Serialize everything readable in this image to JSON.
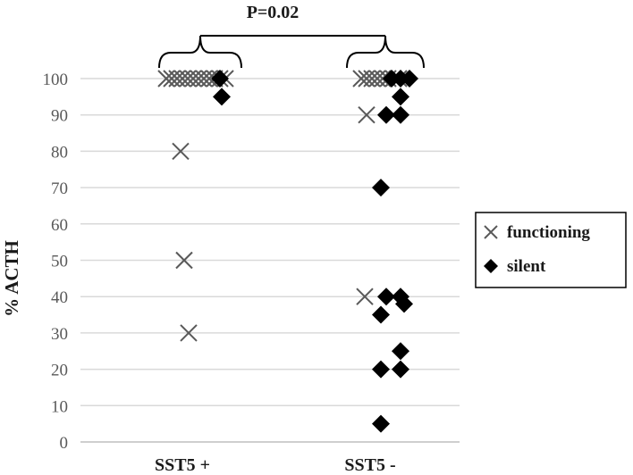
{
  "chart_data": {
    "type": "scatter",
    "title": "",
    "xlabel": "",
    "ylabel": "% ACTH",
    "categories": [
      "SST5 +",
      "SST5 -"
    ],
    "ylim": [
      0,
      100
    ],
    "yticks": [
      0,
      10,
      20,
      30,
      40,
      50,
      60,
      70,
      80,
      90,
      100
    ],
    "grid": true,
    "legend_position": "right",
    "annotation": "P=0.02",
    "series": [
      {
        "name": "functioning",
        "marker": "x",
        "color": "#595959",
        "points": [
          {
            "category": "SST5 +",
            "y": 100
          },
          {
            "category": "SST5 +",
            "y": 100
          },
          {
            "category": "SST5 +",
            "y": 100
          },
          {
            "category": "SST5 +",
            "y": 100
          },
          {
            "category": "SST5 +",
            "y": 100
          },
          {
            "category": "SST5 +",
            "y": 100
          },
          {
            "category": "SST5 +",
            "y": 100
          },
          {
            "category": "SST5 +",
            "y": 100
          },
          {
            "category": "SST5 +",
            "y": 100
          },
          {
            "category": "SST5 +",
            "y": 100
          },
          {
            "category": "SST5 +",
            "y": 100
          },
          {
            "category": "SST5 +",
            "y": 100
          },
          {
            "category": "SST5 +",
            "y": 80
          },
          {
            "category": "SST5 +",
            "y": 50
          },
          {
            "category": "SST5 +",
            "y": 30
          },
          {
            "category": "SST5 -",
            "y": 100
          },
          {
            "category": "SST5 -",
            "y": 100
          },
          {
            "category": "SST5 -",
            "y": 100
          },
          {
            "category": "SST5 -",
            "y": 100
          },
          {
            "category": "SST5 -",
            "y": 100
          },
          {
            "category": "SST5 -",
            "y": 100
          },
          {
            "category": "SST5 -",
            "y": 100
          },
          {
            "category": "SST5 -",
            "y": 100
          },
          {
            "category": "SST5 -",
            "y": 90
          },
          {
            "category": "SST5 -",
            "y": 40
          }
        ]
      },
      {
        "name": "silent",
        "marker": "diamond",
        "color": "#000000",
        "points": [
          {
            "category": "SST5 +",
            "y": 100
          },
          {
            "category": "SST5 +",
            "y": 95
          },
          {
            "category": "SST5 -",
            "y": 100
          },
          {
            "category": "SST5 -",
            "y": 100
          },
          {
            "category": "SST5 -",
            "y": 100
          },
          {
            "category": "SST5 -",
            "y": 95
          },
          {
            "category": "SST5 -",
            "y": 90
          },
          {
            "category": "SST5 -",
            "y": 90
          },
          {
            "category": "SST5 -",
            "y": 70
          },
          {
            "category": "SST5 -",
            "y": 40
          },
          {
            "category": "SST5 -",
            "y": 40
          },
          {
            "category": "SST5 -",
            "y": 38
          },
          {
            "category": "SST5 -",
            "y": 35
          },
          {
            "category": "SST5 -",
            "y": 25
          },
          {
            "category": "SST5 -",
            "y": 20
          },
          {
            "category": "SST5 -",
            "y": 20
          },
          {
            "category": "SST5 -",
            "y": 5
          }
        ]
      }
    ]
  }
}
